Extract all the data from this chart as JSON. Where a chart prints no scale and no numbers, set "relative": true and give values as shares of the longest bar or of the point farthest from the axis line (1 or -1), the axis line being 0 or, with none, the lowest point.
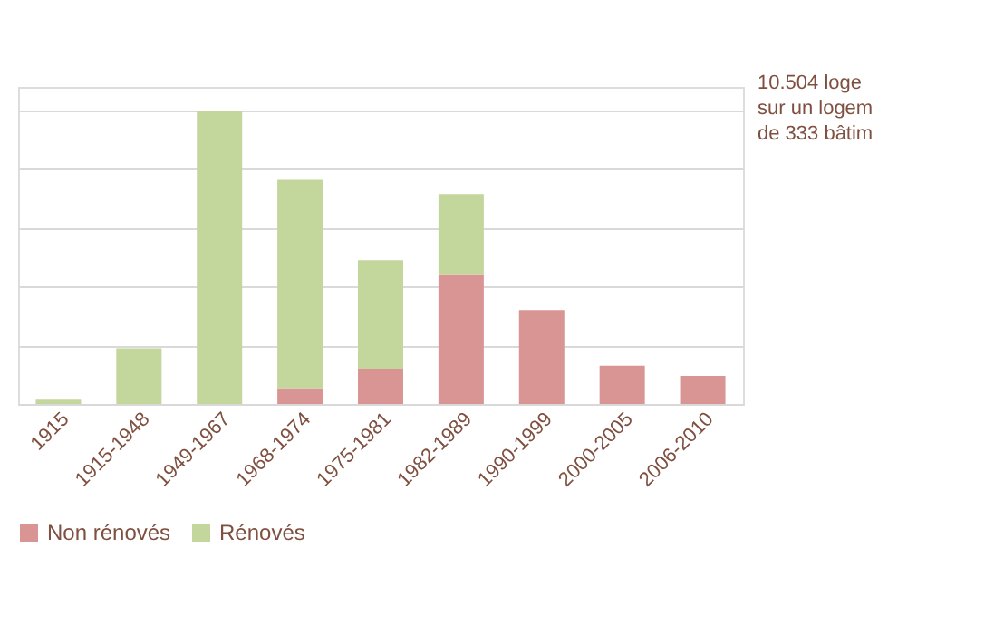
{
  "chart_data": {
    "type": "bar",
    "stacked": true,
    "relative": true,
    "grid": "y",
    "legend": "bottom",
    "categories": [
      "1915",
      "1915-1948",
      "1949-1967",
      "1968-1974",
      "1975-1981",
      "1982-1989",
      "1990-1999",
      "2000-2005",
      "2006-2010"
    ],
    "series": [
      {
        "name": "Non rénovés",
        "color": "#d99594",
        "values": [
          0,
          0,
          0,
          0.054,
          0.12,
          0.44,
          0.32,
          0.13,
          0.096
        ]
      },
      {
        "name": "Rénovés",
        "color": "#c3d69b",
        "values": [
          0.015,
          0.19,
          1,
          0.71,
          0.37,
          0.275,
          0,
          0,
          0
        ]
      }
    ],
    "annotations": [
      "10.504 loge",
      "sur un logem",
      "de 333 bâtim"
    ]
  }
}
